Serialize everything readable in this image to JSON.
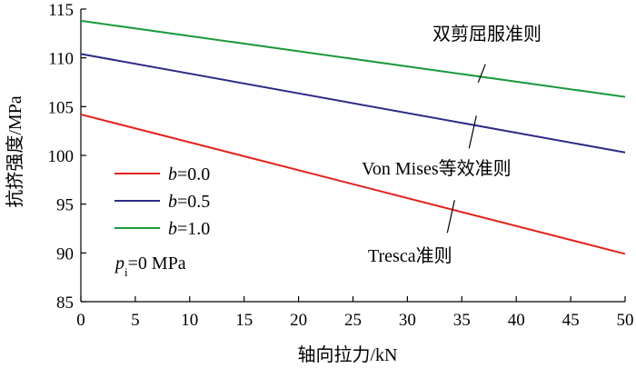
{
  "chart_data": {
    "type": "line",
    "xlabel": "轴向拉力/kN",
    "ylabel": "抗挤强度/MPa",
    "xlim": [
      0,
      50
    ],
    "ylim": [
      85,
      115
    ],
    "xticks": [
      0,
      5,
      10,
      15,
      20,
      25,
      30,
      35,
      40,
      45,
      50
    ],
    "yticks": [
      85,
      90,
      95,
      100,
      105,
      110,
      115
    ],
    "series": [
      {
        "name": "b=0.0",
        "label_var": "b",
        "label_value": "=0.0",
        "color": "#e3221b",
        "x": [
          0,
          50
        ],
        "y": [
          104.2,
          89.9
        ]
      },
      {
        "name": "b=0.5",
        "label_var": "b",
        "label_value": "=0.5",
        "color": "#2e2a86",
        "x": [
          0,
          50
        ],
        "y": [
          110.4,
          100.3
        ]
      },
      {
        "name": "b=1.0",
        "label_var": "b",
        "label_value": "=1.0",
        "color": "#1a9a3a",
        "x": [
          0,
          50
        ],
        "y": [
          113.8,
          106.0
        ]
      }
    ],
    "annotations": [
      {
        "text": "双剪屈服准则",
        "series": 2,
        "x": 37
      },
      {
        "text": "Von Mises等效准则",
        "series": 1,
        "x": 36
      },
      {
        "text": "Tresca准则",
        "series": 0,
        "x": 34
      }
    ],
    "note": {
      "var": "p",
      "sub": "i",
      "rest": "=0 MPa"
    },
    "legend_position": "middle-left"
  }
}
